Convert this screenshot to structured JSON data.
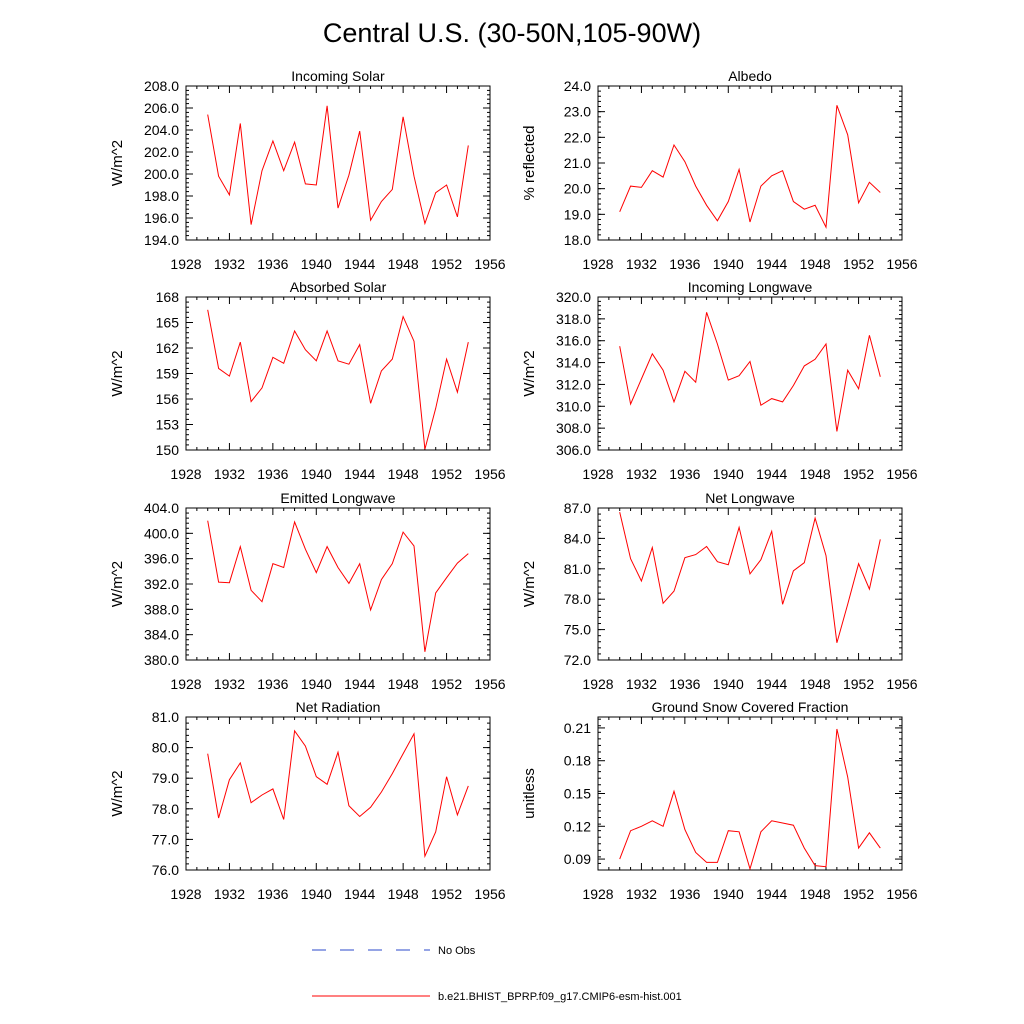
{
  "title": "Central U.S. (30-50N,105-90W)",
  "colors": {
    "model": "#ff0000",
    "obs": "#2b4acb",
    "axis": "#000000"
  },
  "legend": {
    "obs_label": "No Obs",
    "model_label": "b.e21.BHIST_BPRP.f09_g17.CMIP6-esm-hist.001"
  },
  "chart_data": [
    {
      "type": "line",
      "title": "Incoming Solar",
      "ylabel": "W/m^2",
      "xlim": [
        1928,
        1956
      ],
      "xticks": [
        1928,
        1932,
        1936,
        1940,
        1944,
        1948,
        1952,
        1956
      ],
      "xtick_labels": [
        "1928",
        "1932",
        "1936",
        "1940",
        "1944",
        "1948",
        "1952",
        "1956"
      ],
      "ylim": [
        194,
        208
      ],
      "yticks": [
        194,
        196,
        198,
        200,
        202,
        204,
        206,
        208
      ],
      "ytick_labels": [
        "194.0",
        "196.0",
        "198.0",
        "200.0",
        "202.0",
        "204.0",
        "206.0",
        "208.0"
      ],
      "series": [
        {
          "name": "b.e21.BHIST_BPRP.f09_g17.CMIP6-esm-hist.001",
          "x": [
            1930,
            1931,
            1932,
            1933,
            1934,
            1935,
            1936,
            1937,
            1938,
            1939,
            1940,
            1941,
            1942,
            1943,
            1944,
            1945,
            1946,
            1947,
            1948,
            1949,
            1950,
            1951,
            1952,
            1953,
            1954
          ],
          "values": [
            205.4,
            199.8,
            198.1,
            204.6,
            195.4,
            200.3,
            203.0,
            200.3,
            202.9,
            199.1,
            199.0,
            206.2,
            196.9,
            199.9,
            203.9,
            195.8,
            197.5,
            198.6,
            205.2,
            199.8,
            195.5,
            198.3,
            199.0,
            196.1,
            202.6
          ]
        }
      ]
    },
    {
      "type": "line",
      "title": "Albedo",
      "ylabel": "% reflected",
      "xlim": [
        1928,
        1956
      ],
      "xticks": [
        1928,
        1932,
        1936,
        1940,
        1944,
        1948,
        1952,
        1956
      ],
      "xtick_labels": [
        "1928",
        "1932",
        "1936",
        "1940",
        "1944",
        "1948",
        "1952",
        "1956"
      ],
      "ylim": [
        18,
        24
      ],
      "yticks": [
        18,
        19,
        20,
        21,
        22,
        23,
        24
      ],
      "ytick_labels": [
        "18.0",
        "19.0",
        "20.0",
        "21.0",
        "22.0",
        "23.0",
        "24.0"
      ],
      "series": [
        {
          "name": "b.e21.BHIST_BPRP.f09_g17.CMIP6-esm-hist.001",
          "x": [
            1930,
            1931,
            1932,
            1933,
            1934,
            1935,
            1936,
            1937,
            1938,
            1939,
            1940,
            1941,
            1942,
            1943,
            1944,
            1945,
            1946,
            1947,
            1948,
            1949,
            1950,
            1951,
            1952,
            1953,
            1954
          ],
          "values": [
            19.1,
            20.1,
            20.05,
            20.7,
            20.45,
            21.7,
            21.05,
            20.1,
            19.35,
            18.75,
            19.5,
            20.75,
            18.7,
            20.1,
            20.5,
            20.7,
            19.5,
            19.2,
            19.35,
            18.5,
            23.25,
            22.1,
            19.45,
            20.25,
            19.85
          ]
        }
      ]
    },
    {
      "type": "line",
      "title": "Absorbed Solar",
      "ylabel": "W/m^2",
      "xlim": [
        1928,
        1956
      ],
      "xticks": [
        1928,
        1932,
        1936,
        1940,
        1944,
        1948,
        1952,
        1956
      ],
      "xtick_labels": [
        "1928",
        "1932",
        "1936",
        "1940",
        "1944",
        "1948",
        "1952",
        "1956"
      ],
      "ylim": [
        150,
        168
      ],
      "yticks": [
        150,
        153,
        156,
        159,
        162,
        165,
        168
      ],
      "ytick_labels": [
        "150",
        "153",
        "156",
        "159",
        "162",
        "165",
        "168"
      ],
      "series": [
        {
          "name": "b.e21.BHIST_BPRP.f09_g17.CMIP6-esm-hist.001",
          "x": [
            1930,
            1931,
            1932,
            1933,
            1934,
            1935,
            1936,
            1937,
            1938,
            1939,
            1940,
            1941,
            1942,
            1943,
            1944,
            1945,
            1946,
            1947,
            1948,
            1949,
            1950,
            1951,
            1952,
            1953,
            1954
          ],
          "values": [
            166.5,
            159.6,
            158.7,
            162.7,
            155.7,
            157.3,
            160.9,
            160.2,
            164.0,
            161.8,
            160.5,
            164.0,
            160.5,
            160.1,
            162.4,
            155.5,
            159.3,
            160.7,
            165.7,
            162.8,
            150.1,
            154.9,
            160.7,
            156.8,
            162.7
          ]
        }
      ]
    },
    {
      "type": "line",
      "title": "Incoming Longwave",
      "ylabel": "W/m^2",
      "xlim": [
        1928,
        1956
      ],
      "xticks": [
        1928,
        1932,
        1936,
        1940,
        1944,
        1948,
        1952,
        1956
      ],
      "xtick_labels": [
        "1928",
        "1932",
        "1936",
        "1940",
        "1944",
        "1948",
        "1952",
        "1956"
      ],
      "ylim": [
        306,
        320
      ],
      "yticks": [
        306,
        308,
        310,
        312,
        314,
        316,
        318,
        320
      ],
      "ytick_labels": [
        "306.0",
        "308.0",
        "310.0",
        "312.0",
        "314.0",
        "316.0",
        "318.0",
        "320.0"
      ],
      "series": [
        {
          "name": "b.e21.BHIST_BPRP.f09_g17.CMIP6-esm-hist.001",
          "x": [
            1930,
            1931,
            1932,
            1933,
            1934,
            1935,
            1936,
            1937,
            1938,
            1939,
            1940,
            1941,
            1942,
            1943,
            1944,
            1945,
            1946,
            1947,
            1948,
            1949,
            1950,
            1951,
            1952,
            1953,
            1954
          ],
          "values": [
            315.5,
            310.2,
            312.5,
            314.8,
            313.3,
            310.4,
            313.2,
            312.2,
            318.6,
            315.7,
            312.4,
            312.8,
            314.1,
            310.1,
            310.7,
            310.4,
            311.9,
            313.7,
            314.3,
            315.7,
            307.7,
            313.3,
            311.6,
            316.5,
            312.7
          ]
        }
      ]
    },
    {
      "type": "line",
      "title": "Emitted Longwave",
      "ylabel": "W/m^2",
      "xlim": [
        1928,
        1956
      ],
      "xticks": [
        1928,
        1932,
        1936,
        1940,
        1944,
        1948,
        1952,
        1956
      ],
      "xtick_labels": [
        "1928",
        "1932",
        "1936",
        "1940",
        "1944",
        "1948",
        "1952",
        "1956"
      ],
      "ylim": [
        380,
        404
      ],
      "yticks": [
        380,
        384,
        388,
        392,
        396,
        400,
        404
      ],
      "ytick_labels": [
        "380.0",
        "384.0",
        "388.0",
        "392.0",
        "396.0",
        "400.0",
        "404.0"
      ],
      "series": [
        {
          "name": "b.e21.BHIST_BPRP.f09_g17.CMIP6-esm-hist.001",
          "x": [
            1930,
            1931,
            1932,
            1933,
            1934,
            1935,
            1936,
            1937,
            1938,
            1939,
            1940,
            1941,
            1942,
            1943,
            1944,
            1945,
            1946,
            1947,
            1948,
            1949,
            1950,
            1951,
            1952,
            1953,
            1954
          ],
          "values": [
            402.0,
            392.3,
            392.2,
            397.9,
            391.0,
            389.2,
            395.2,
            394.6,
            401.8,
            397.5,
            393.8,
            397.9,
            394.6,
            392.1,
            395.2,
            387.9,
            392.7,
            395.2,
            400.2,
            398.0,
            381.3,
            390.6,
            393.0,
            395.3,
            396.8
          ]
        }
      ]
    },
    {
      "type": "line",
      "title": "Net Longwave",
      "ylabel": "W/m^2",
      "xlim": [
        1928,
        1956
      ],
      "xticks": [
        1928,
        1932,
        1936,
        1940,
        1944,
        1948,
        1952,
        1956
      ],
      "xtick_labels": [
        "1928",
        "1932",
        "1936",
        "1940",
        "1944",
        "1948",
        "1952",
        "1956"
      ],
      "ylim": [
        72,
        87
      ],
      "yticks": [
        72,
        75,
        78,
        81,
        84,
        87
      ],
      "ytick_labels": [
        "72.0",
        "75.0",
        "78.0",
        "81.0",
        "84.0",
        "87.0"
      ],
      "series": [
        {
          "name": "b.e21.BHIST_BPRP.f09_g17.CMIP6-esm-hist.001",
          "x": [
            1930,
            1931,
            1932,
            1933,
            1934,
            1935,
            1936,
            1937,
            1938,
            1939,
            1940,
            1941,
            1942,
            1943,
            1944,
            1945,
            1946,
            1947,
            1948,
            1949,
            1950,
            1951,
            1952,
            1953,
            1954
          ],
          "values": [
            86.6,
            82.0,
            79.8,
            83.1,
            77.6,
            78.8,
            82.1,
            82.4,
            83.2,
            81.7,
            81.4,
            85.1,
            80.5,
            81.9,
            84.7,
            77.5,
            80.8,
            81.6,
            86.0,
            82.3,
            73.7,
            77.5,
            81.5,
            79.0,
            83.9
          ]
        }
      ]
    },
    {
      "type": "line",
      "title": "Net Radiation",
      "ylabel": "W/m^2",
      "xlim": [
        1928,
        1956
      ],
      "xticks": [
        1928,
        1932,
        1936,
        1940,
        1944,
        1948,
        1952,
        1956
      ],
      "xtick_labels": [
        "1928",
        "1932",
        "1936",
        "1940",
        "1944",
        "1948",
        "1952",
        "1956"
      ],
      "ylim": [
        76,
        81
      ],
      "yticks": [
        76,
        77,
        78,
        79,
        80,
        81
      ],
      "ytick_labels": [
        "76.0",
        "77.0",
        "78.0",
        "79.0",
        "80.0",
        "81.0"
      ],
      "series": [
        {
          "name": "b.e21.BHIST_BPRP.f09_g17.CMIP6-esm-hist.001",
          "x": [
            1930,
            1931,
            1932,
            1933,
            1934,
            1935,
            1936,
            1937,
            1938,
            1939,
            1940,
            1941,
            1942,
            1943,
            1944,
            1945,
            1946,
            1947,
            1948,
            1949,
            1950,
            1951,
            1952,
            1953,
            1954
          ],
          "values": [
            79.8,
            77.7,
            78.95,
            79.5,
            78.2,
            78.45,
            78.65,
            77.65,
            80.55,
            80.05,
            79.05,
            78.8,
            79.85,
            78.1,
            77.75,
            78.05,
            78.55,
            79.15,
            79.8,
            80.45,
            76.45,
            77.25,
            79.05,
            77.8,
            78.75
          ]
        }
      ]
    },
    {
      "type": "line",
      "title": "Ground Snow Covered Fraction",
      "ylabel": "unitless",
      "xlim": [
        1928,
        1956
      ],
      "xticks": [
        1928,
        1932,
        1936,
        1940,
        1944,
        1948,
        1952,
        1956
      ],
      "xtick_labels": [
        "1928",
        "1932",
        "1936",
        "1940",
        "1944",
        "1948",
        "1952",
        "1956"
      ],
      "ylim": [
        0.08,
        0.22
      ],
      "yticks": [
        0.09,
        0.12,
        0.15,
        0.18,
        0.21
      ],
      "ytick_labels": [
        "0.09",
        "0.12",
        "0.15",
        "0.18",
        "0.21"
      ],
      "series": [
        {
          "name": "b.e21.BHIST_BPRP.f09_g17.CMIP6-esm-hist.001",
          "x": [
            1930,
            1931,
            1932,
            1933,
            1934,
            1935,
            1936,
            1937,
            1938,
            1939,
            1940,
            1941,
            1942,
            1943,
            1944,
            1945,
            1946,
            1947,
            1948,
            1949,
            1950,
            1951,
            1952,
            1953,
            1954
          ],
          "values": [
            0.09,
            0.116,
            0.12,
            0.125,
            0.12,
            0.152,
            0.117,
            0.096,
            0.087,
            0.087,
            0.116,
            0.115,
            0.081,
            0.115,
            0.125,
            0.123,
            0.121,
            0.1,
            0.084,
            0.083,
            0.209,
            0.165,
            0.1,
            0.114,
            0.1
          ]
        }
      ]
    }
  ]
}
